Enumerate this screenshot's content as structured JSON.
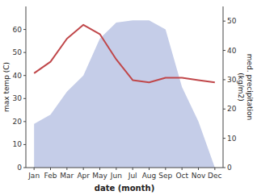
{
  "chart_data": {
    "type": "line",
    "xlabel": "date (month)",
    "ylabel": "max temp (C)",
    "y2label": "med. precipitation\n(kg/m2)",
    "categories": [
      "Jan",
      "Feb",
      "Mar",
      "Apr",
      "May",
      "Jun",
      "Jul",
      "Aug",
      "Sep",
      "Oct",
      "Nov",
      "Dec"
    ],
    "series": [
      {
        "type": "area",
        "color": "#c5cde8",
        "values": [
          19,
          23,
          33,
          40,
          56,
          63,
          64,
          64,
          60,
          35,
          20,
          0
        ]
      },
      {
        "type": "line",
        "color": "#c0474a",
        "values": [
          41,
          46,
          56,
          62,
          58,
          47,
          38,
          37,
          39,
          39,
          38,
          37
        ]
      }
    ],
    "ylim": [
      0,
      70
    ],
    "yticks": [
      0,
      10,
      20,
      30,
      40,
      50,
      60
    ],
    "y2lim": [
      0,
      55
    ],
    "y2ticks": [
      0,
      10,
      20,
      30,
      40,
      50
    ],
    "grid": false
  }
}
